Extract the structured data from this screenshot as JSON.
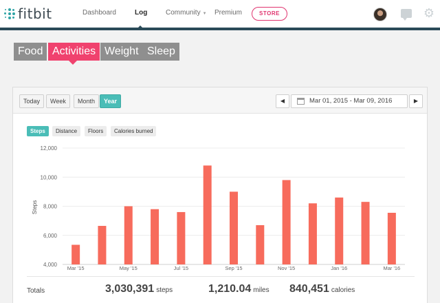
{
  "brand": {
    "logo_text": "fitbit",
    "accent": "#2fa4a6"
  },
  "nav": {
    "items": [
      "Dashboard",
      "Log",
      "Community",
      "Premium"
    ],
    "active": "Log",
    "store_label": "STORE"
  },
  "icons": {
    "chat": "chat-bubble-icon",
    "settings": "gear-icon",
    "avatar": "user-avatar"
  },
  "categories": {
    "tabs": [
      "Food",
      "Activities",
      "Weight",
      "Sleep"
    ],
    "active": "Activities",
    "active_color": "#f0426e"
  },
  "range": {
    "buttons": [
      "Today",
      "Week",
      "Month",
      "Year"
    ],
    "active": "Year",
    "date_range": "Mar 01, 2015 - Mar 09, 2016"
  },
  "metrics": {
    "buttons": [
      "Steps",
      "Distance",
      "Floors",
      "Calories burned"
    ],
    "active": "Steps"
  },
  "chart_data": {
    "type": "bar",
    "ylabel": "Steps",
    "ylim": [
      4000,
      12000
    ],
    "yticks": [
      "4,000",
      "6,000",
      "8,000",
      "10,000",
      "12,000"
    ],
    "xtick_labels": [
      "Mar '15",
      "May '15",
      "Jul '15",
      "Sep '15",
      "Nov '15",
      "Jan '16",
      "Mar '16"
    ],
    "values": [
      5350,
      6650,
      8000,
      7800,
      7600,
      10800,
      9000,
      6700,
      9800,
      8200,
      8600,
      8300,
      7550
    ],
    "bar_color": "#f76b5c",
    "grid": true
  },
  "totals": {
    "label": "Totals",
    "steps": {
      "value": "3,030,391",
      "unit": "steps"
    },
    "miles": {
      "value": "1,210.04",
      "unit": "miles"
    },
    "calories": {
      "value": "840,451",
      "unit": "calories"
    }
  }
}
